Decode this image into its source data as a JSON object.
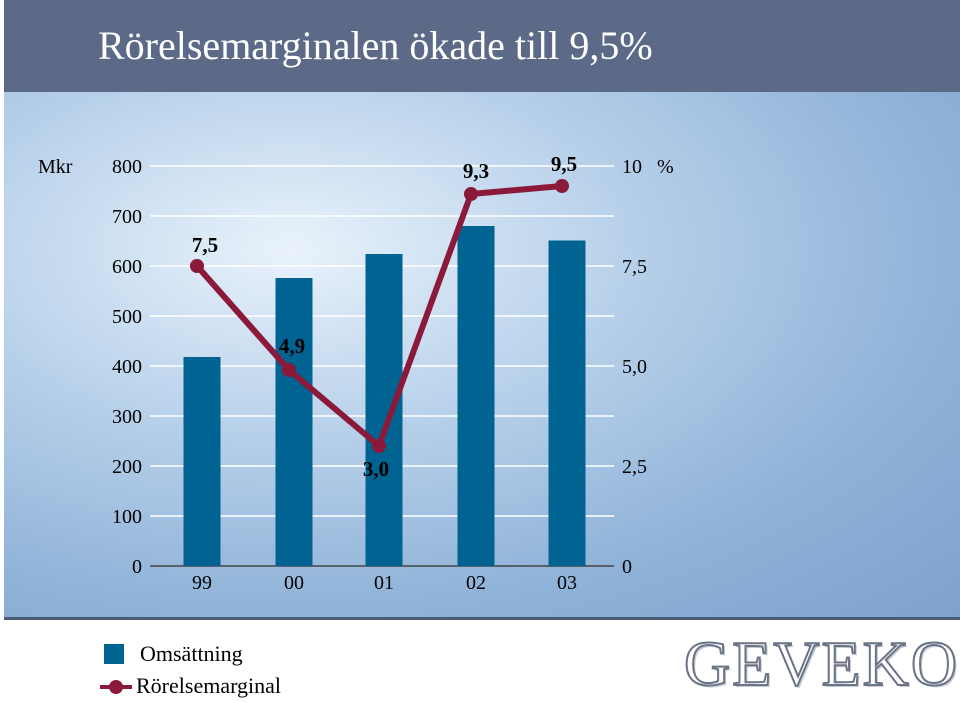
{
  "title": "Rörelsemarginalen ökade till 9,5%",
  "left_axis_unit": "Mkr",
  "right_axis_unit": "%",
  "colors": {
    "bar": "#006391",
    "line": "#8b1a3a",
    "header": "#5c6a88"
  },
  "chart_data": {
    "type": "bar",
    "categories": [
      "99",
      "00",
      "01",
      "02",
      "03"
    ],
    "series": [
      {
        "name": "Omsättning",
        "type": "bar",
        "axis": "left",
        "values": [
          418,
          576,
          624,
          680,
          651
        ]
      },
      {
        "name": "Rörelsemarginal",
        "type": "line",
        "axis": "right",
        "values": [
          7.5,
          4.9,
          3.0,
          9.3,
          9.5
        ],
        "labels": [
          "7,5",
          "4,9",
          "3,0",
          "9,3",
          "9,5"
        ]
      }
    ],
    "left_ylim": [
      0,
      800
    ],
    "left_ticks": [
      "0",
      "100",
      "200",
      "300",
      "400",
      "500",
      "600",
      "700",
      "800"
    ],
    "right_ylim": [
      0,
      10
    ],
    "right_ticks": [
      "0",
      "2,5",
      "5,0",
      "7,5",
      "10"
    ],
    "grid": "left-tick-lines",
    "legend": "bottom-left"
  },
  "legend": {
    "bar_label": "Omsättning",
    "line_label": "Rörelsemarginal"
  },
  "logo_text": "GEVEKO"
}
